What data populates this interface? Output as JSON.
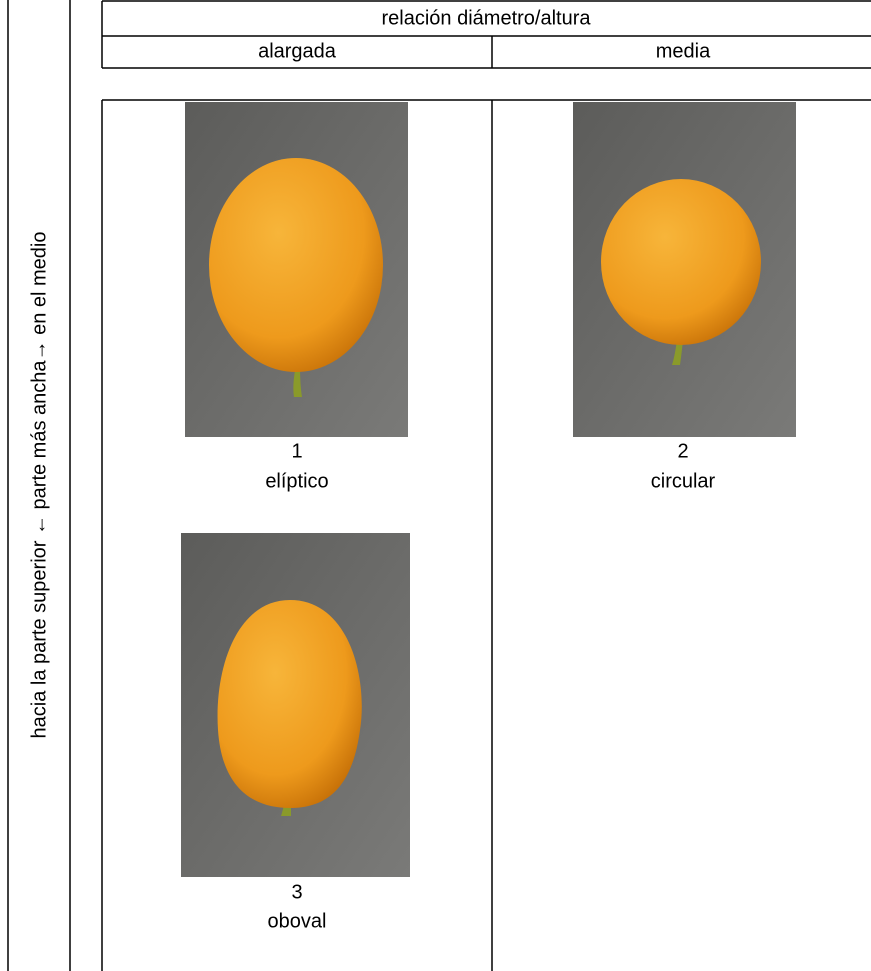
{
  "side_label": "hacia la parte superior  ←   parte más ancha→ en el medio",
  "table": {
    "header": "relación diámetro/altura",
    "columns": [
      "alargada",
      "media"
    ],
    "cells": [
      {
        "number": "1",
        "label": "elíptico"
      },
      {
        "number": "2",
        "label": "circular"
      },
      {
        "number": "3",
        "label": "oboval"
      }
    ]
  }
}
